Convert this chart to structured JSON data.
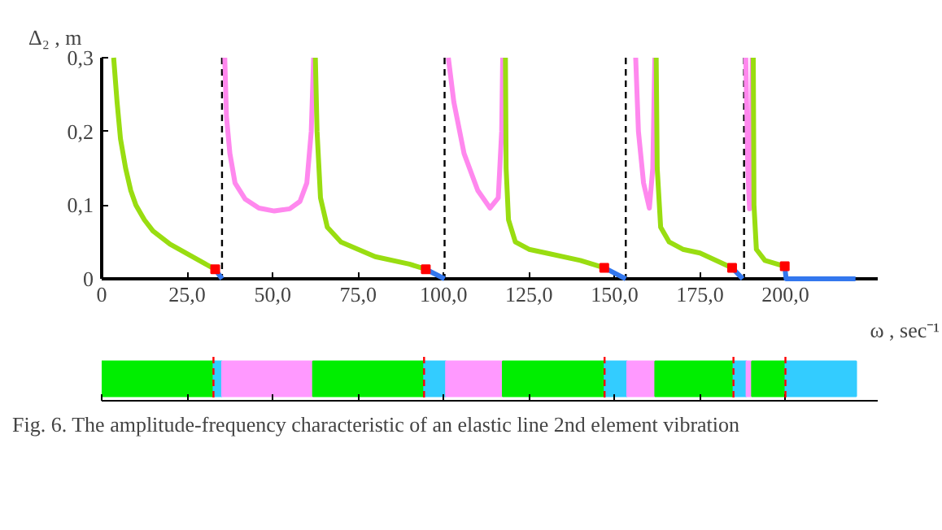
{
  "chart_data": [
    {
      "type": "line",
      "xlabel": "ω , sec⁻¹",
      "ylabel": "Δ₂ , m",
      "xlim": [
        0,
        227
      ],
      "ylim": [
        0,
        0.3
      ],
      "xticks": [
        {
          "value": 0,
          "label": "0"
        },
        {
          "value": 25,
          "label": "25,0"
        },
        {
          "value": 50,
          "label": "50,0"
        },
        {
          "value": 75,
          "label": "75,0"
        },
        {
          "value": 100,
          "label": "100,0"
        },
        {
          "value": 125,
          "label": "125,0"
        },
        {
          "value": 150,
          "label": "150,0"
        },
        {
          "value": 175,
          "label": "175,0"
        },
        {
          "value": 200,
          "label": "200,0"
        }
      ],
      "yticks": [
        {
          "value": 0,
          "label": "0"
        },
        {
          "value": 0.1,
          "label": "0,1"
        },
        {
          "value": 0.2,
          "label": "0,2"
        },
        {
          "value": 0.3,
          "label": "0,3"
        }
      ],
      "line_style": "solid",
      "series": [
        {
          "color": "#99dd11",
          "x": [
            3.5,
            4.5,
            5.5,
            7,
            8.5,
            10,
            12.5,
            15,
            20,
            25,
            30,
            33.2
          ],
          "values": [
            0.3,
            0.24,
            0.19,
            0.15,
            0.12,
            0.1,
            0.08,
            0.065,
            0.047,
            0.034,
            0.021,
            0.013
          ]
        },
        {
          "color": "#3377ee",
          "x": [
            33.2,
            35.2
          ],
          "values": [
            0.013,
            0
          ]
        },
        {
          "color": "#ff88ee",
          "x": [
            36,
            36.5,
            37.5,
            39,
            42,
            46,
            50.5,
            55,
            58,
            60,
            61.3,
            62
          ],
          "values": [
            0.3,
            0.22,
            0.17,
            0.13,
            0.108,
            0.096,
            0.092,
            0.095,
            0.105,
            0.13,
            0.2,
            0.3
          ]
        },
        {
          "color": "#99dd11",
          "x": [
            62.5,
            63,
            64,
            66,
            70,
            75,
            80,
            90,
            94.8
          ],
          "values": [
            0.3,
            0.2,
            0.11,
            0.07,
            0.05,
            0.04,
            0.03,
            0.02,
            0.013
          ]
        },
        {
          "color": "#3377ee",
          "x": [
            94.8,
            100.3
          ],
          "values": [
            0.013,
            0
          ]
        },
        {
          "color": "#ff88ee",
          "x": [
            101.4,
            103,
            106,
            110,
            113.6,
            116,
            117,
            117.3
          ],
          "values": [
            0.3,
            0.24,
            0.17,
            0.12,
            0.096,
            0.11,
            0.2,
            0.3
          ]
        },
        {
          "color": "#99dd11",
          "x": [
            118.1,
            118.3,
            119,
            121,
            125,
            130,
            140,
            147
          ],
          "values": [
            0.3,
            0.15,
            0.08,
            0.05,
            0.04,
            0.035,
            0.025,
            0.015
          ]
        },
        {
          "color": "#3377ee",
          "x": [
            147,
            153.3
          ],
          "values": [
            0.015,
            0
          ]
        },
        {
          "color": "#ff88ee",
          "x": [
            156.2,
            157,
            158.5,
            160.2,
            161.2,
            161.8
          ],
          "values": [
            0.3,
            0.2,
            0.13,
            0.096,
            0.15,
            0.3
          ]
        },
        {
          "color": "#99dd11",
          "x": [
            162.2,
            162.5,
            163.5,
            166,
            170,
            175,
            184.4
          ],
          "values": [
            0.3,
            0.15,
            0.07,
            0.05,
            0.04,
            0.035,
            0.015
          ]
        },
        {
          "color": "#3377ee",
          "x": [
            184.4,
            187.5
          ],
          "values": [
            0.015,
            0
          ]
        },
        {
          "color": "#ff88ee",
          "x": [
            188.4,
            189,
            189.5,
            190,
            190.3
          ],
          "values": [
            0.3,
            0.15,
            0.095,
            0.15,
            0.3
          ]
        },
        {
          "color": "#99dd11",
          "x": [
            190.6,
            190.8,
            191.5,
            194,
            199.8
          ],
          "values": [
            0.3,
            0.1,
            0.04,
            0.025,
            0.017
          ]
        },
        {
          "color": "#3377ee",
          "x": [
            199.8,
            200.2,
            220.5
          ],
          "values": [
            0.017,
            0,
            0
          ]
        },
        {
          "type": "scatter",
          "marker": "square",
          "color": "#ff0000",
          "x": [
            33.2,
            94.8,
            147,
            184.4,
            199.8
          ],
          "values": [
            0.013,
            0.013,
            0.015,
            0.015,
            0.017
          ]
        }
      ],
      "ref_lines": [
        {
          "axis": "x",
          "value": 35.2,
          "color": "#000000",
          "line_style": "dashed"
        },
        {
          "axis": "x",
          "value": 100.3,
          "color": "#000000",
          "line_style": "dashed"
        },
        {
          "axis": "x",
          "value": 153.3,
          "color": "#000000",
          "line_style": "dashed"
        },
        {
          "axis": "x",
          "value": 187.9,
          "color": "#000000",
          "line_style": "dashed"
        }
      ]
    },
    {
      "type": "bar",
      "orientation": "horizontal",
      "stacked": true,
      "categories": [
        null
      ],
      "xlim": [
        0,
        227
      ],
      "xticks": [
        0,
        25,
        50,
        75,
        100,
        125,
        150,
        175,
        200
      ],
      "tick_labels": false,
      "series": [
        {
          "color": "#00ee00",
          "values": [
            32.7
          ]
        },
        {
          "color": "#33ccff",
          "values": [
            2.5
          ]
        },
        {
          "color": "#ff99ff",
          "values": [
            26.6
          ]
        },
        {
          "color": "#00ee00",
          "values": [
            32.5
          ]
        },
        {
          "color": "#33ccff",
          "values": [
            6.4
          ]
        },
        {
          "color": "#ff99ff",
          "values": [
            16.6
          ]
        },
        {
          "color": "#00ee00",
          "values": [
            29.8
          ]
        },
        {
          "color": "#33ccff",
          "values": [
            6.6
          ]
        },
        {
          "color": "#ff99ff",
          "values": [
            8.2
          ]
        },
        {
          "color": "#00ee00",
          "values": [
            22.9
          ]
        },
        {
          "color": "#33ccff",
          "values": [
            3.8
          ]
        },
        {
          "color": "#ff99ff",
          "values": [
            1.6
          ]
        },
        {
          "color": "#00ee00",
          "values": [
            9.8
          ]
        },
        {
          "color": "#33ccff",
          "values": [
            20.7
          ]
        }
      ],
      "ref_lines": [
        {
          "axis": "x",
          "value": 32.7,
          "color": "#ff0000",
          "line_style": "dashed"
        },
        {
          "axis": "x",
          "value": 94.3,
          "color": "#ff0000",
          "line_style": "dashed"
        },
        {
          "axis": "x",
          "value": 147.1,
          "color": "#ff0000",
          "line_style": "dashed"
        },
        {
          "axis": "x",
          "value": 184.8,
          "color": "#ff0000",
          "line_style": "dashed"
        },
        {
          "axis": "x",
          "value": 200,
          "color": "#ff0000",
          "line_style": "dashed"
        }
      ],
      "annotations": [
        "Fig. 6. The amplitude-frequency characteristic of an elastic line 2nd element vibration"
      ]
    }
  ]
}
